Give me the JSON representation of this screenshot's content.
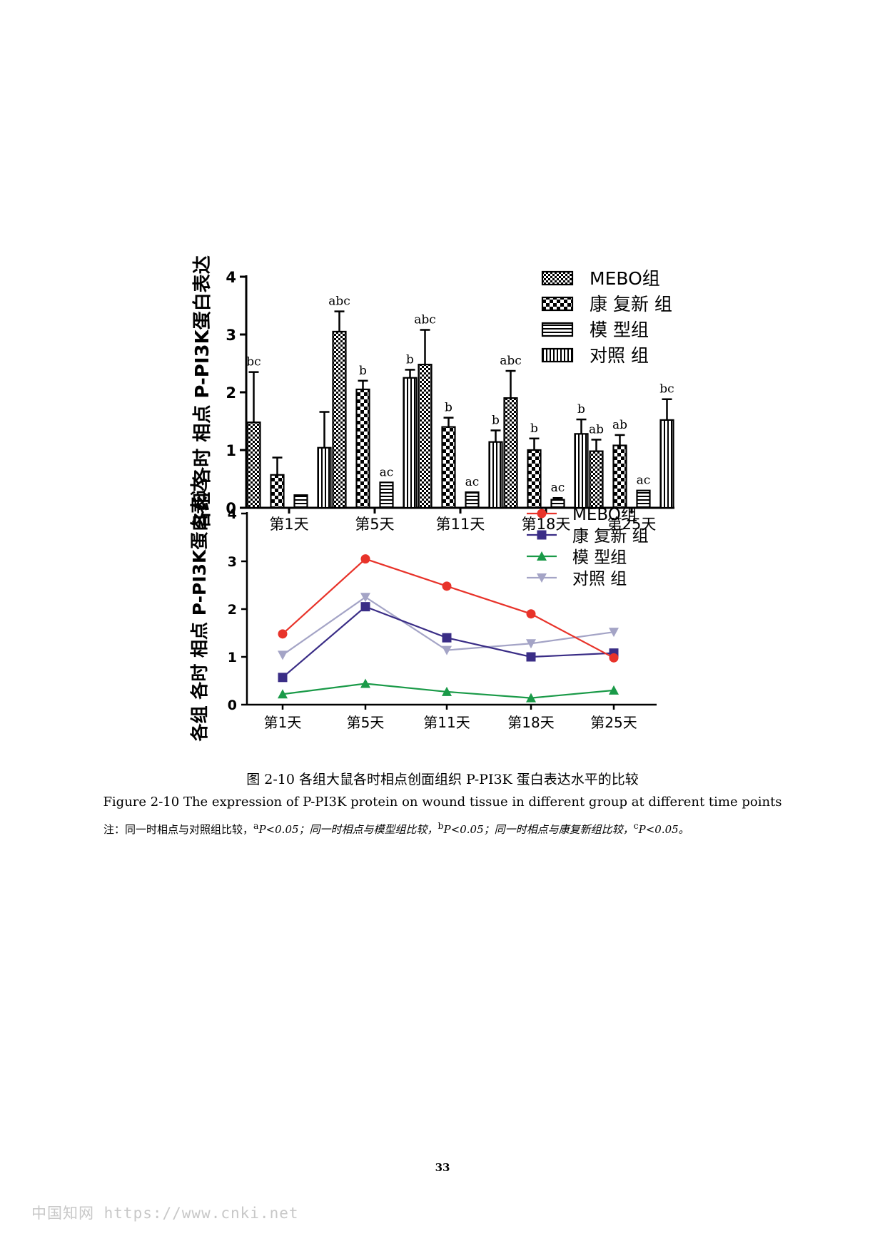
{
  "chart_data": [
    {
      "type": "bar",
      "ylabel": "各组 各时 相点 P-PI3K蛋白表达",
      "ylim": [
        0,
        4
      ],
      "yticks": [
        "0",
        "1",
        "2",
        "3",
        "4"
      ],
      "categories": [
        "第1天",
        "第5天",
        "第11天",
        "第18天",
        "第25天"
      ],
      "legend_position": "top-right",
      "series": [
        {
          "name": "MEBO组",
          "pattern": "fine-check",
          "values": [
            1.48,
            3.05,
            2.48,
            1.9,
            0.98
          ],
          "errors": [
            0.87,
            0.35,
            0.6,
            0.47,
            0.2
          ],
          "labels": [
            "bc",
            "abc",
            "abc",
            "abc",
            "ab"
          ]
        },
        {
          "name": "康 复新 组",
          "pattern": "checker",
          "values": [
            0.57,
            2.05,
            1.4,
            1.0,
            1.08
          ],
          "errors": [
            0.3,
            0.15,
            0.16,
            0.2,
            0.18
          ],
          "labels": [
            "",
            "b",
            "b",
            "b",
            "ab"
          ]
        },
        {
          "name": "模 型组",
          "pattern": "horizontal",
          "values": [
            0.22,
            0.44,
            0.27,
            0.14,
            0.3
          ],
          "errors": [
            0.0,
            0.0,
            0.0,
            0.03,
            0.0
          ],
          "labels": [
            "",
            "ac",
            "ac",
            "ac",
            "ac"
          ]
        },
        {
          "name": "对照 组",
          "pattern": "vertical",
          "values": [
            1.04,
            2.25,
            1.14,
            1.28,
            1.52
          ],
          "errors": [
            0.62,
            0.14,
            0.2,
            0.25,
            0.36
          ],
          "labels": [
            "",
            "b",
            "b",
            "b",
            "bc"
          ]
        }
      ]
    },
    {
      "type": "line",
      "ylabel": "各组 各时 相点 P-PI3K蛋白表达",
      "ylim": [
        0,
        4
      ],
      "yticks": [
        "0",
        "1",
        "2",
        "3",
        "4"
      ],
      "categories": [
        "第1天",
        "第5天",
        "第11天",
        "第18天",
        "第25天"
      ],
      "legend_position": "top-right",
      "series": [
        {
          "name": "MEBO组",
          "color": "#e8332a",
          "marker": "circle",
          "values": [
            1.48,
            3.05,
            2.48,
            1.9,
            0.98
          ]
        },
        {
          "name": "康 复新 组",
          "color": "#3a2d86",
          "marker": "square",
          "values": [
            0.57,
            2.05,
            1.4,
            1.0,
            1.08
          ]
        },
        {
          "name": "模 型组",
          "color": "#1a9a48",
          "marker": "triangle-up",
          "values": [
            0.22,
            0.44,
            0.27,
            0.14,
            0.3
          ]
        },
        {
          "name": "对照 组",
          "color": "#a4a4c6",
          "marker": "triangle-down",
          "values": [
            1.04,
            2.25,
            1.14,
            1.28,
            1.52
          ]
        }
      ]
    }
  ],
  "caption": {
    "zh": "图 2-10 各组大鼠各时相点创面组织 P-PI3K 蛋白表达水平的比较",
    "en": "Figure 2-10 The expression of P-PI3K protein on wound tissue in different group at different time points",
    "note": {
      "prefix": "注：同一时相点与对照组比较，",
      "sup_a": "a",
      "p_a": "P<0.05；同一时相点与模型组比较，",
      "sup_b": "b",
      "p_b": "P<0.05；同一时相点与康复新组比较，",
      "sup_c": "c",
      "p_c": "P<0.05。"
    }
  },
  "page_number": "33",
  "watermark": "中国知网  https://www.cnki.net"
}
